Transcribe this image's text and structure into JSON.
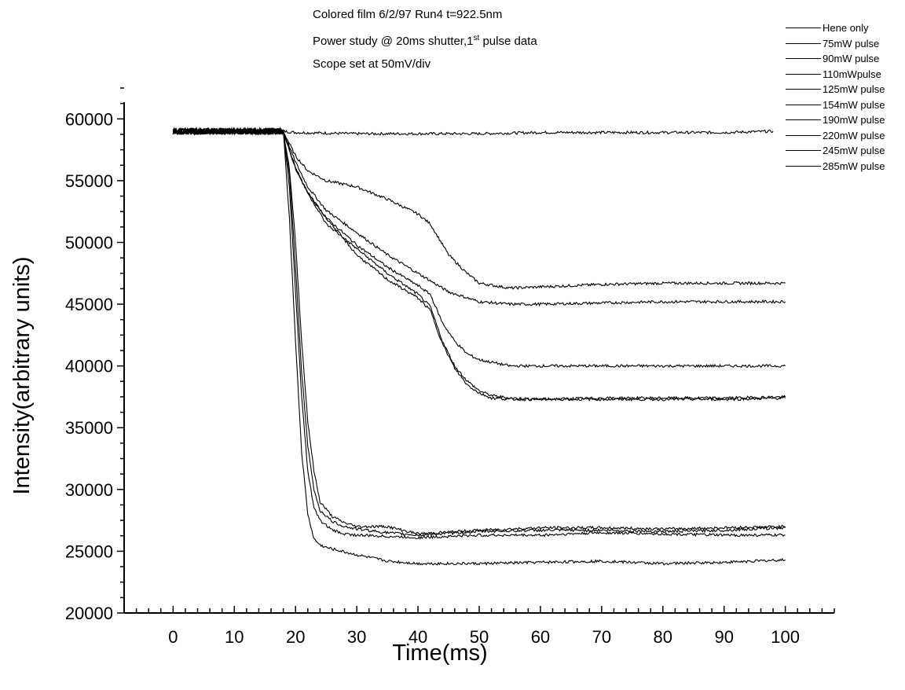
{
  "chart_data": {
    "type": "line",
    "title_lines": [
      "Colored film 6/2/97 Run4 t=922.5nm",
      "Power study @ 20ms shutter,1",
      "Scope set at 50mV/div"
    ],
    "title_sup": "st",
    "title_tail": " pulse data",
    "xlabel": "Time(ms)",
    "ylabel": "Intensity(arbitrary units)",
    "xlim": [
      -8,
      108
    ],
    "ylim": [
      20000,
      62500
    ],
    "xticks": [
      0,
      10,
      20,
      30,
      40,
      50,
      60,
      70,
      80,
      90,
      100
    ],
    "xtick_labels": [
      "0",
      "10",
      "20",
      "30",
      "40",
      "50",
      "60",
      "70",
      "80",
      "90",
      "100"
    ],
    "yticks": [
      20000,
      25000,
      30000,
      35000,
      40000,
      45000,
      50000,
      55000,
      60000
    ],
    "ytick_labels": [
      "20000",
      "25000",
      "30000",
      "35000",
      "40000",
      "45000",
      "50000",
      "55000",
      "60000"
    ],
    "grid": false,
    "legend_position": "top-right",
    "series": [
      {
        "name": "Hene only",
        "x": [
          0,
          18,
          20,
          30,
          40,
          50,
          60,
          70,
          80,
          90,
          98
        ],
        "values": [
          59000,
          59000,
          58900,
          58800,
          58800,
          58800,
          58900,
          58900,
          58900,
          58900,
          59000
        ]
      },
      {
        "name": "75mW pulse",
        "x": [
          0,
          18,
          20,
          22,
          25,
          30,
          35,
          40,
          42,
          45,
          48,
          50,
          55,
          60,
          70,
          80,
          90,
          100
        ],
        "values": [
          59000,
          59000,
          57000,
          55800,
          55000,
          54500,
          53500,
          52300,
          51500,
          49000,
          47500,
          46700,
          46300,
          46400,
          46600,
          46700,
          46700,
          46700
        ]
      },
      {
        "name": "90mW pulse",
        "x": [
          0,
          18,
          20,
          22,
          25,
          30,
          35,
          40,
          45,
          50,
          55,
          60,
          70,
          80,
          90,
          100
        ],
        "values": [
          59000,
          59000,
          56500,
          54500,
          52600,
          50800,
          49000,
          47500,
          46000,
          45200,
          45000,
          45000,
          45100,
          45200,
          45200,
          45200
        ]
      },
      {
        "name": "110mWpulse",
        "x": [
          0,
          18,
          20,
          22,
          25,
          30,
          35,
          40,
          42,
          44,
          46,
          48,
          50,
          55,
          60,
          70,
          80,
          90,
          100
        ],
        "values": [
          59000,
          59000,
          56000,
          54000,
          52000,
          49800,
          48000,
          46500,
          45800,
          43500,
          42000,
          41000,
          40500,
          40000,
          40000,
          40000,
          40000,
          40000,
          40000
        ]
      },
      {
        "name": "125mW pulse",
        "x": [
          0,
          18,
          20,
          22,
          25,
          30,
          35,
          40,
          42,
          44,
          46,
          48,
          50,
          52,
          55,
          60,
          70,
          80,
          90,
          100
        ],
        "values": [
          59000,
          59000,
          56000,
          54000,
          51500,
          49500,
          47500,
          45800,
          44800,
          42000,
          40000,
          38800,
          38000,
          37600,
          37400,
          37300,
          37300,
          37300,
          37300,
          37400
        ]
      },
      {
        "name": "154mW pulse",
        "x": [
          0,
          18,
          20,
          22,
          25,
          30,
          35,
          40,
          42,
          44,
          46,
          48,
          50,
          52,
          55,
          60,
          70,
          80,
          90,
          100
        ],
        "values": [
          59000,
          59000,
          56000,
          54000,
          52000,
          49000,
          47000,
          45500,
          44500,
          41800,
          39800,
          38500,
          37800,
          37400,
          37300,
          37300,
          37400,
          37400,
          37400,
          37500
        ]
      },
      {
        "name": "190mW pulse",
        "x": [
          0,
          18,
          19,
          20,
          21,
          22,
          23,
          24,
          26,
          28,
          30,
          35,
          40,
          50,
          60,
          70,
          80,
          90,
          100
        ],
        "values": [
          59000,
          59000,
          56000,
          50000,
          42000,
          35500,
          31500,
          29000,
          27800,
          27300,
          27000,
          27000,
          26400,
          26700,
          26900,
          26900,
          26800,
          26900,
          27000
        ]
      },
      {
        "name": "220mW pulse",
        "x": [
          0,
          18,
          19,
          20,
          21,
          22,
          23,
          24,
          26,
          28,
          30,
          35,
          40,
          50,
          60,
          70,
          80,
          90,
          100
        ],
        "values": [
          59000,
          59000,
          55500,
          48000,
          39500,
          33500,
          30000,
          28300,
          27400,
          27000,
          26800,
          26500,
          26300,
          26600,
          26700,
          26700,
          26600,
          26700,
          26900
        ]
      },
      {
        "name": "245mW pulse",
        "x": [
          0,
          18,
          19,
          20,
          21,
          22,
          23,
          24,
          26,
          28,
          30,
          35,
          40,
          50,
          60,
          70,
          80,
          90,
          100
        ],
        "values": [
          59000,
          59000,
          54500,
          46000,
          37500,
          31500,
          28500,
          27500,
          26700,
          26400,
          26300,
          26200,
          26100,
          26300,
          26300,
          26500,
          26400,
          26300,
          26300
        ]
      },
      {
        "name": "285mW pulse",
        "x": [
          0,
          18,
          19,
          20,
          21,
          22,
          23,
          24,
          25,
          30,
          35,
          40,
          50,
          60,
          70,
          80,
          90,
          100
        ],
        "values": [
          59000,
          59000,
          52000,
          42000,
          33000,
          28000,
          26000,
          25500,
          25300,
          24700,
          24200,
          24000,
          24000,
          24100,
          24200,
          24000,
          24100,
          24300
        ]
      }
    ]
  }
}
